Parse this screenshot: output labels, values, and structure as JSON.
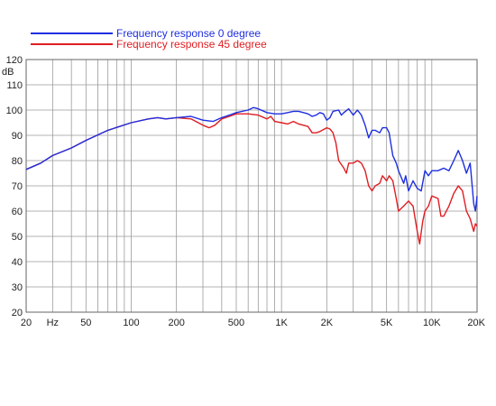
{
  "chart_data": {
    "type": "line",
    "title": "",
    "xlabel": "",
    "ylabel": "",
    "x_scale": "log",
    "xlim": [
      20,
      20000
    ],
    "ylim": [
      20,
      120
    ],
    "grid": true,
    "legend_position": "top-left",
    "x_ticks": [
      {
        "value": 20,
        "label": "20"
      },
      {
        "value": 30,
        "label": "Hz"
      },
      {
        "value": 50,
        "label": "50"
      },
      {
        "value": 100,
        "label": "100"
      },
      {
        "value": 200,
        "label": "200"
      },
      {
        "value": 500,
        "label": "500"
      },
      {
        "value": 1000,
        "label": "1K"
      },
      {
        "value": 2000,
        "label": "2K"
      },
      {
        "value": 5000,
        "label": "5K"
      },
      {
        "value": 10000,
        "label": "10K"
      },
      {
        "value": 20000,
        "label": "20K"
      }
    ],
    "x_gridlines": [
      20,
      30,
      40,
      50,
      60,
      70,
      80,
      90,
      100,
      200,
      300,
      400,
      500,
      600,
      700,
      800,
      900,
      1000,
      2000,
      3000,
      4000,
      5000,
      6000,
      7000,
      8000,
      9000,
      10000,
      20000
    ],
    "y_ticks": [
      {
        "value": 20,
        "label": "20"
      },
      {
        "value": 30,
        "label": "30"
      },
      {
        "value": 40,
        "label": "40"
      },
      {
        "value": 50,
        "label": "50"
      },
      {
        "value": 60,
        "label": "60"
      },
      {
        "value": 70,
        "label": "70"
      },
      {
        "value": 80,
        "label": "80"
      },
      {
        "value": 90,
        "label": "90"
      },
      {
        "value": 100,
        "label": "100"
      },
      {
        "value": 110,
        "label": "110"
      },
      {
        "value": 120,
        "label": "120"
      }
    ],
    "y_unit": "dB",
    "series": [
      {
        "name": "Frequency response 0 degree",
        "color": "#1f2fe0",
        "points": [
          [
            20,
            76.5
          ],
          [
            25,
            79
          ],
          [
            30,
            82
          ],
          [
            40,
            85
          ],
          [
            50,
            88
          ],
          [
            70,
            92
          ],
          [
            100,
            95
          ],
          [
            130,
            96.5
          ],
          [
            150,
            97
          ],
          [
            170,
            96.5
          ],
          [
            200,
            97
          ],
          [
            250,
            97.5
          ],
          [
            300,
            96
          ],
          [
            350,
            95.5
          ],
          [
            400,
            97
          ],
          [
            450,
            98
          ],
          [
            500,
            99
          ],
          [
            600,
            100
          ],
          [
            650,
            101
          ],
          [
            700,
            100.5
          ],
          [
            800,
            99
          ],
          [
            900,
            98.5
          ],
          [
            1000,
            98.5
          ],
          [
            1100,
            99
          ],
          [
            1200,
            99.5
          ],
          [
            1300,
            99.5
          ],
          [
            1400,
            99
          ],
          [
            1500,
            98.5
          ],
          [
            1600,
            97.5
          ],
          [
            1700,
            98
          ],
          [
            1800,
            99
          ],
          [
            1900,
            98.5
          ],
          [
            2000,
            96
          ],
          [
            2100,
            97
          ],
          [
            2200,
            99.5
          ],
          [
            2400,
            100
          ],
          [
            2500,
            98
          ],
          [
            2600,
            99
          ],
          [
            2800,
            100.5
          ],
          [
            3000,
            98
          ],
          [
            3200,
            100
          ],
          [
            3400,
            98
          ],
          [
            3600,
            94
          ],
          [
            3800,
            89
          ],
          [
            4000,
            92
          ],
          [
            4200,
            92
          ],
          [
            4500,
            91
          ],
          [
            4700,
            93
          ],
          [
            5000,
            93
          ],
          [
            5200,
            91
          ],
          [
            5500,
            82
          ],
          [
            5800,
            79
          ],
          [
            6000,
            76
          ],
          [
            6500,
            71
          ],
          [
            6700,
            74
          ],
          [
            7000,
            68
          ],
          [
            7500,
            72
          ],
          [
            8000,
            69
          ],
          [
            8500,
            68
          ],
          [
            9000,
            76
          ],
          [
            9500,
            74
          ],
          [
            10000,
            76
          ],
          [
            11000,
            76
          ],
          [
            12000,
            77
          ],
          [
            13000,
            76
          ],
          [
            14000,
            80
          ],
          [
            15000,
            84
          ],
          [
            16000,
            80
          ],
          [
            17000,
            75
          ],
          [
            18000,
            79
          ],
          [
            19000,
            63
          ],
          [
            19500,
            60
          ],
          [
            20000,
            66
          ]
        ]
      },
      {
        "name": "Frequency response 45 degree",
        "color": "#e01d22",
        "points": [
          [
            20,
            76.5
          ],
          [
            25,
            79
          ],
          [
            30,
            82
          ],
          [
            40,
            85
          ],
          [
            50,
            88
          ],
          [
            70,
            92
          ],
          [
            100,
            95
          ],
          [
            130,
            96.5
          ],
          [
            150,
            97
          ],
          [
            170,
            96.5
          ],
          [
            200,
            97
          ],
          [
            250,
            96.5
          ],
          [
            300,
            94
          ],
          [
            330,
            93
          ],
          [
            360,
            94
          ],
          [
            400,
            96.5
          ],
          [
            450,
            97.5
          ],
          [
            500,
            98.5
          ],
          [
            600,
            98.5
          ],
          [
            700,
            98
          ],
          [
            800,
            96.5
          ],
          [
            850,
            97.5
          ],
          [
            900,
            95.5
          ],
          [
            1000,
            95
          ],
          [
            1100,
            94.5
          ],
          [
            1200,
            95.5
          ],
          [
            1300,
            94.5
          ],
          [
            1400,
            94
          ],
          [
            1500,
            93.5
          ],
          [
            1600,
            91
          ],
          [
            1700,
            91
          ],
          [
            1800,
            91.5
          ],
          [
            2000,
            93
          ],
          [
            2100,
            92.5
          ],
          [
            2200,
            91
          ],
          [
            2300,
            87
          ],
          [
            2400,
            80
          ],
          [
            2600,
            77
          ],
          [
            2700,
            75
          ],
          [
            2800,
            79
          ],
          [
            3000,
            79
          ],
          [
            3200,
            80
          ],
          [
            3400,
            79
          ],
          [
            3600,
            76
          ],
          [
            3800,
            70
          ],
          [
            4000,
            68
          ],
          [
            4200,
            70
          ],
          [
            4500,
            71
          ],
          [
            4700,
            74
          ],
          [
            5000,
            72
          ],
          [
            5200,
            74
          ],
          [
            5500,
            72
          ],
          [
            5800,
            65
          ],
          [
            6000,
            60
          ],
          [
            6500,
            62
          ],
          [
            7000,
            64
          ],
          [
            7500,
            62
          ],
          [
            8000,
            52
          ],
          [
            8300,
            47
          ],
          [
            8700,
            56
          ],
          [
            9000,
            60
          ],
          [
            9500,
            62
          ],
          [
            10000,
            66
          ],
          [
            11000,
            65
          ],
          [
            11500,
            58
          ],
          [
            12000,
            58
          ],
          [
            13000,
            62
          ],
          [
            14000,
            67
          ],
          [
            15000,
            70
          ],
          [
            16000,
            68
          ],
          [
            17000,
            60
          ],
          [
            18000,
            57
          ],
          [
            19000,
            52
          ],
          [
            19500,
            55
          ],
          [
            20000,
            54
          ]
        ]
      }
    ]
  }
}
